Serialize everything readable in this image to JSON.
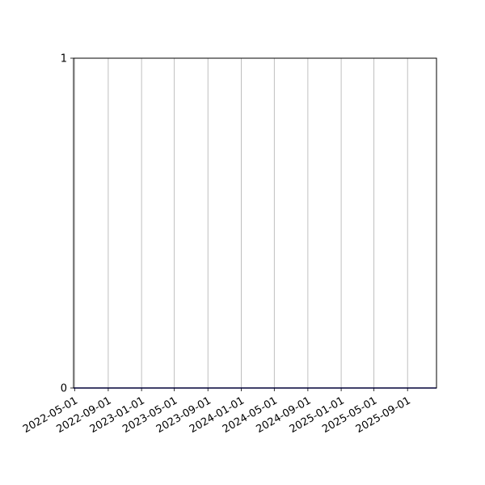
{
  "chart_data": {
    "type": "line",
    "title": "",
    "xlabel": "",
    "ylabel": "",
    "x_type": "date",
    "xlim": [
      "2022-04-27",
      "2025-12-16"
    ],
    "ylim": [
      0,
      1
    ],
    "xticks": [
      "2022-05-01",
      "2022-09-01",
      "2023-01-01",
      "2023-05-01",
      "2023-09-01",
      "2024-01-01",
      "2024-05-01",
      "2024-09-01",
      "2025-01-01",
      "2025-05-01",
      "2025-09-01"
    ],
    "yticks": [
      "0",
      "1"
    ],
    "grid": {
      "x": true,
      "y": false
    },
    "series": [
      {
        "x": [
          "2022-04-27",
          "2025-12-16"
        ],
        "y": [
          0,
          0
        ],
        "color": "#0000aa"
      }
    ],
    "colors": {
      "grid": "#b0b0b0",
      "axes": "#000000"
    }
  }
}
